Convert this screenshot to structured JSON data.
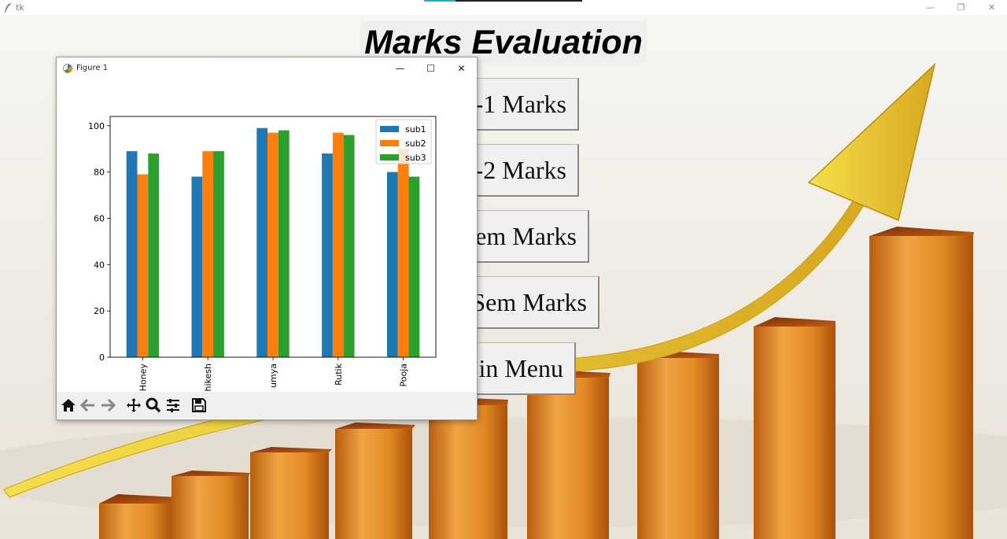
{
  "window": {
    "title": "tk"
  },
  "main": {
    "heading": "Marks Evaluation",
    "buttons": [
      {
        "label": "-1 Marks"
      },
      {
        "label": "-2 Marks"
      },
      {
        "label": "em Marks"
      },
      {
        "label": "Sem Marks"
      },
      {
        "label": "in Menu"
      }
    ]
  },
  "figure_window": {
    "title": "Figure 1",
    "toolbar": [
      {
        "icon": "home-icon"
      },
      {
        "icon": "back-arrow-icon"
      },
      {
        "icon": "forward-arrow-icon"
      },
      {
        "icon": "pan-icon"
      },
      {
        "icon": "zoom-icon"
      },
      {
        "icon": "configure-subplots-icon"
      },
      {
        "icon": "save-icon"
      }
    ]
  },
  "chart_data": {
    "type": "bar",
    "categories": [
      "Honey",
      "hikesh",
      "umya",
      "Rutik",
      "Pooja"
    ],
    "series": [
      {
        "name": "sub1",
        "color": "#1f77b4",
        "values": [
          89,
          78,
          99,
          88,
          80
        ]
      },
      {
        "name": "sub2",
        "color": "#ff7f0e",
        "values": [
          79,
          89,
          97,
          97,
          90
        ]
      },
      {
        "name": "sub3",
        "color": "#2ca02c",
        "values": [
          88,
          89,
          98,
          96,
          78
        ]
      }
    ],
    "yticks": [
      0,
      20,
      40,
      60,
      80,
      100
    ],
    "ylim": [
      0,
      104
    ],
    "legend_position": "top-right",
    "grid": false
  }
}
